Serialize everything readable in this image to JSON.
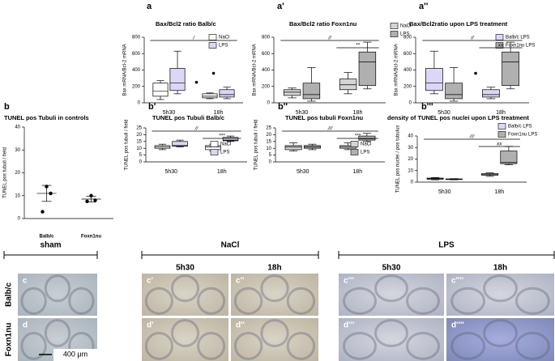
{
  "chart_data": [
    {
      "type": "box",
      "letter": "a",
      "title": "Bax/Bcl2 ratio Balb/c",
      "ylabel": "Bax mRNA/Bcl-2 mRNA",
      "categories": [
        "5h30",
        "18h"
      ],
      "ylim": [
        0,
        800
      ],
      "yticks": [
        0,
        200,
        400,
        600,
        800
      ],
      "series": [
        {
          "name": "NaCl",
          "color": "#ffffff",
          "values": [
            {
              "min": 40,
              "q1": 80,
              "median": 140,
              "q3": 240,
              "max": 270
            },
            {
              "min": 50,
              "q1": 60,
              "median": 80,
              "q3": 110,
              "max": 120
            }
          ],
          "outliers": [
            [],
            [
              250
            ]
          ]
        },
        {
          "name": "LPS",
          "color": "#dcd6f7",
          "values": [
            {
              "min": 110,
              "q1": 150,
              "median": 240,
              "q3": 420,
              "max": 630
            },
            {
              "min": 50,
              "q1": 70,
              "median": 100,
              "q3": 160,
              "max": 190
            }
          ],
          "outliers": [
            [],
            [
              360
            ]
          ]
        }
      ],
      "annotations": [
        "/"
      ]
    },
    {
      "type": "box",
      "letter": "a'",
      "title": "Bax/Bcl2 ratio Foxn1nu",
      "ylabel": "Bax mRNA/Bcl-2 mRNA",
      "categories": [
        "5h30",
        "18h"
      ],
      "ylim": [
        0,
        800
      ],
      "yticks": [
        0,
        200,
        400,
        600,
        800
      ],
      "series": [
        {
          "name": "NaCl",
          "color": "#d4d4d4",
          "values": [
            {
              "min": 60,
              "q1": 90,
              "median": 130,
              "q3": 160,
              "max": 180
            },
            {
              "min": 110,
              "q1": 160,
              "median": 220,
              "q3": 290,
              "max": 370
            }
          ],
          "outliers": [
            [],
            []
          ]
        },
        {
          "name": "LPS",
          "color": "#b0b0b0",
          "values": [
            {
              "min": 20,
              "q1": 50,
              "median": 100,
              "q3": 240,
              "max": 430
            },
            {
              "min": 170,
              "q1": 210,
              "median": 500,
              "q3": 620,
              "max": 740
            }
          ],
          "outliers": [
            [],
            []
          ]
        }
      ],
      "annotations": [
        "//",
        "**"
      ]
    },
    {
      "type": "box",
      "letter": "a''",
      "title": "Bax/Bcl2ratio upon LPS treatment",
      "ylabel": "Bax mRNA/Bcl-2 mRNA",
      "categories": [
        "5h30",
        "18h"
      ],
      "ylim": [
        0,
        800
      ],
      "yticks": [
        0,
        200,
        400,
        600,
        800
      ],
      "series": [
        {
          "name": "Balb/c LPS",
          "color": "#dcd6f7",
          "values": [
            {
              "min": 110,
              "q1": 150,
              "median": 240,
              "q3": 420,
              "max": 630
            },
            {
              "min": 50,
              "q1": 70,
              "median": 100,
              "q3": 160,
              "max": 190
            }
          ],
          "outliers": [
            [],
            [
              360
            ]
          ]
        },
        {
          "name": "Foxn1nu LPS",
          "color": "#b0b0b0",
          "values": [
            {
              "min": 20,
              "q1": 50,
              "median": 100,
              "q3": 240,
              "max": 430
            },
            {
              "min": 170,
              "q1": 210,
              "median": 500,
              "q3": 620,
              "max": 740
            }
          ],
          "outliers": [
            [],
            []
          ]
        }
      ],
      "annotations": [
        "//",
        "xx"
      ]
    },
    {
      "type": "dot",
      "letter": "b",
      "title": "TUNEL pos Tubuli in controls",
      "ylabel": "TUNEL pos tubuli / field",
      "categories": [
        "Balb/c",
        "Foxn1nu"
      ],
      "ylim": [
        0,
        40
      ],
      "yticks": [
        0,
        10,
        20,
        30,
        40
      ],
      "points": [
        [
          14,
          11,
          3
        ],
        [
          10,
          8,
          7.5
        ]
      ],
      "mean": [
        11,
        8.5
      ],
      "sd": [
        3.5,
        1.3
      ],
      "color": "#000000"
    },
    {
      "type": "box",
      "letter": "b'",
      "title": "TUNEL pos Tubuli Balb/c",
      "ylabel": "TUNEL pos tubuli / field",
      "categories": [
        "5h30",
        "18h"
      ],
      "ylim": [
        0,
        25
      ],
      "yticks": [
        0,
        5,
        10,
        15,
        20,
        25
      ],
      "series": [
        {
          "name": "NaCl",
          "color": "#ffffff",
          "values": [
            {
              "min": 9,
              "q1": 10,
              "median": 11,
              "q3": 12,
              "max": 13
            },
            {
              "min": 8,
              "q1": 9,
              "median": 11,
              "q3": 12,
              "max": 13
            }
          ],
          "outliers": [
            [],
            []
          ]
        },
        {
          "name": "LPS",
          "color": "#dcd6f7",
          "values": [
            {
              "min": 11,
              "q1": 11.5,
              "median": 12,
              "q3": 15,
              "max": 16
            },
            {
              "min": 15,
              "q1": 15.5,
              "median": 16,
              "q3": 18,
              "max": 19
            }
          ],
          "outliers": [
            [],
            []
          ]
        }
      ],
      "annotations": [
        "//",
        "***"
      ]
    },
    {
      "type": "box",
      "letter": "b''",
      "title": "TUNEL pos tubuli Foxn1nu",
      "ylabel": "TUNEL pos tubuli / field",
      "categories": [
        "5h30",
        "18h"
      ],
      "ylim": [
        0,
        25
      ],
      "yticks": [
        0,
        5,
        10,
        15,
        20,
        25
      ],
      "series": [
        {
          "name": "NaCl",
          "color": "#d4d4d4",
          "values": [
            {
              "min": 8,
              "q1": 9,
              "median": 11,
              "q3": 12,
              "max": 14
            },
            {
              "min": 9,
              "q1": 10,
              "median": 11,
              "q3": 12,
              "max": 14
            }
          ],
          "outliers": [
            [],
            []
          ]
        },
        {
          "name": "LPS",
          "color": "#b0b0b0",
          "values": [
            {
              "min": 9,
              "q1": 10,
              "median": 11,
              "q3": 12,
              "max": 13
            },
            {
              "min": 15,
              "q1": 16,
              "median": 17,
              "q3": 19,
              "max": 21
            }
          ],
          "outliers": [
            [],
            []
          ]
        }
      ],
      "annotations": [
        "///",
        "***"
      ]
    },
    {
      "type": "box",
      "letter": "b'''",
      "title": "density of TUNEL pos nuclei upon LPS treatment",
      "ylabel": "TUNEL pos nuclei / pos tubulus",
      "categories": [
        "5h30",
        "18h"
      ],
      "ylim": [
        0,
        40
      ],
      "yticks": [
        0,
        10,
        20,
        30,
        40
      ],
      "series": [
        {
          "name": "Balb/c LPS",
          "color": "#dcd6f7",
          "values": [
            {
              "min": 2,
              "q1": 2.5,
              "median": 3,
              "q3": 3.5,
              "max": 4
            },
            {
              "min": 5,
              "q1": 6,
              "median": 6.5,
              "q3": 7.5,
              "max": 8
            }
          ],
          "outliers": [
            [],
            []
          ]
        },
        {
          "name": "Foxn1nu LPS",
          "color": "#b0b0b0",
          "values": [
            {
              "min": 2,
              "q1": 2.2,
              "median": 2.5,
              "q3": 2.8,
              "max": 3
            },
            {
              "min": 15,
              "q1": 16,
              "median": 17,
              "q3": 27,
              "max": 31
            }
          ],
          "outliers": [
            [],
            []
          ]
        }
      ],
      "annotations": [
        "///",
        "xx"
      ]
    }
  ],
  "micrographs": {
    "groups": [
      "sham",
      "NaCl",
      "LPS"
    ],
    "times": [
      "5h30",
      "18h",
      "5h30",
      "18h"
    ],
    "rows": [
      "Balb/c",
      "Foxn1nu"
    ],
    "panels": [
      [
        "c",
        "c'",
        "c''",
        "c'''",
        "c''''"
      ],
      [
        "d",
        "d'",
        "d''",
        "d'''",
        "d''''"
      ]
    ],
    "scale_bar": "400 μm"
  }
}
